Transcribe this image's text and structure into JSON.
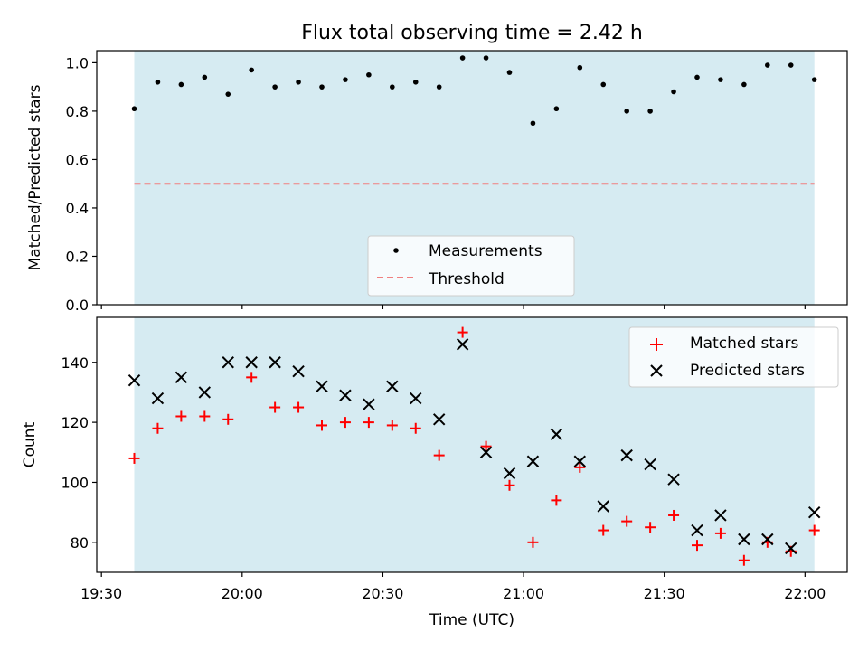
{
  "title": "Flux total observing time = 2.42 h",
  "x_axis": {
    "label": "Time (UTC)",
    "ticks": [
      "19:30",
      "20:00",
      "20:30",
      "21:00",
      "21:30",
      "22:00"
    ]
  },
  "colors": {
    "background_band": "#add8e6",
    "measurements": "#000000",
    "threshold": "#f08080",
    "matched": "#ff0000",
    "predicted": "#000000"
  },
  "chart_data": [
    {
      "type": "scatter",
      "panel": "top",
      "xlabel": "",
      "ylabel": "Matched/Predicted stars",
      "ylim": [
        0.0,
        1.05
      ],
      "yticks": [
        "0.0",
        "0.2",
        "0.4",
        "0.6",
        "0.8",
        "1.0"
      ],
      "shaded_interval": [
        "19:37",
        "22:02"
      ],
      "legend": {
        "placement": "lower center",
        "entries": [
          "Measurements",
          "Threshold"
        ]
      },
      "threshold": {
        "name": "Threshold",
        "value": 0.5
      },
      "series": [
        {
          "name": "Measurements",
          "marker": "dot",
          "x": [
            "19:37",
            "19:42",
            "19:47",
            "19:52",
            "19:57",
            "20:02",
            "20:07",
            "20:12",
            "20:17",
            "20:22",
            "20:27",
            "20:32",
            "20:37",
            "20:42",
            "20:47",
            "20:52",
            "20:57",
            "21:02",
            "21:07",
            "21:12",
            "21:17",
            "21:22",
            "21:27",
            "21:32",
            "21:37",
            "21:42",
            "21:47",
            "21:52",
            "21:57",
            "22:02"
          ],
          "y": [
            0.81,
            0.92,
            0.91,
            0.94,
            0.87,
            0.97,
            0.9,
            0.92,
            0.9,
            0.93,
            0.95,
            0.9,
            0.92,
            0.9,
            1.02,
            1.02,
            0.96,
            0.75,
            0.81,
            0.98,
            0.91,
            0.8,
            0.8,
            0.88,
            0.94,
            0.93,
            0.91,
            0.99,
            0.99,
            0.93
          ]
        }
      ]
    },
    {
      "type": "scatter",
      "panel": "bottom",
      "xlabel": "Time (UTC)",
      "ylabel": "Count",
      "ylim": [
        70,
        155
      ],
      "yticks": [
        "80",
        "100",
        "120",
        "140"
      ],
      "shaded_interval": [
        "19:37",
        "22:02"
      ],
      "legend": {
        "placement": "top-right",
        "entries": [
          "Matched stars",
          "Predicted stars"
        ]
      },
      "x": [
        "19:37",
        "19:42",
        "19:47",
        "19:52",
        "19:57",
        "20:02",
        "20:07",
        "20:12",
        "20:17",
        "20:22",
        "20:27",
        "20:32",
        "20:37",
        "20:42",
        "20:47",
        "20:52",
        "20:57",
        "21:02",
        "21:07",
        "21:12",
        "21:17",
        "21:22",
        "21:27",
        "21:32",
        "21:37",
        "21:42",
        "21:47",
        "21:52",
        "21:57",
        "22:02"
      ],
      "series": [
        {
          "name": "Matched stars",
          "marker": "plus",
          "values": [
            108,
            118,
            122,
            122,
            121,
            135,
            125,
            125,
            119,
            120,
            120,
            119,
            118,
            109,
            150,
            112,
            99,
            80,
            94,
            105,
            84,
            87,
            85,
            89,
            79,
            83,
            74,
            80,
            77,
            84
          ]
        },
        {
          "name": "Predicted stars",
          "marker": "x",
          "values": [
            134,
            128,
            135,
            130,
            140,
            140,
            140,
            137,
            132,
            129,
            126,
            132,
            128,
            121,
            146,
            110,
            103,
            107,
            116,
            107,
            92,
            109,
            106,
            101,
            84,
            89,
            81,
            81,
            78,
            90
          ]
        }
      ]
    }
  ]
}
